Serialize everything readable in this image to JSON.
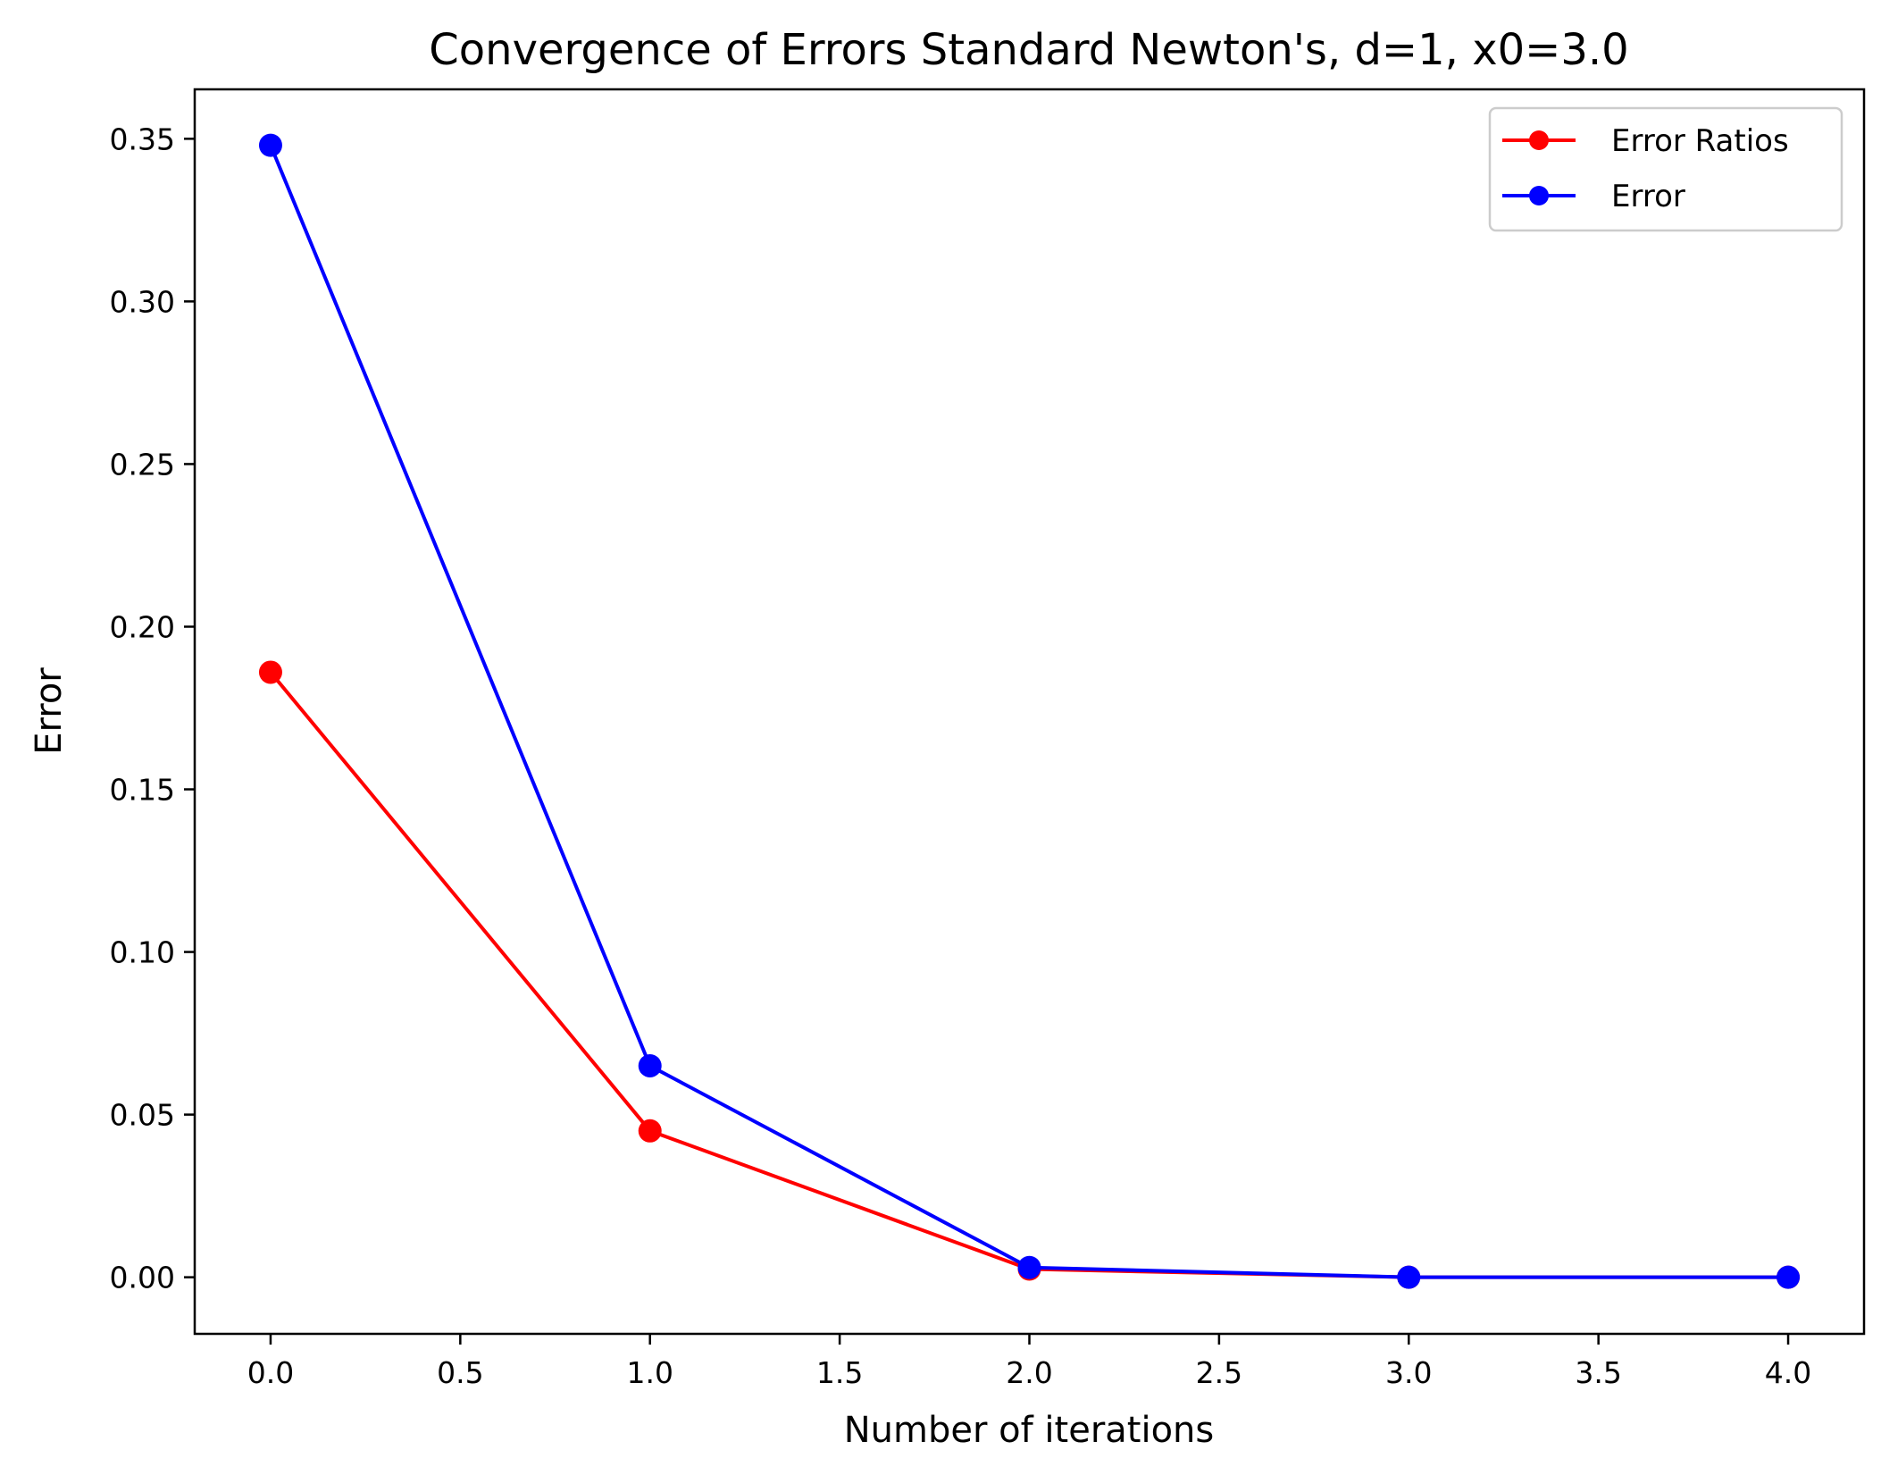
{
  "chart_data": {
    "type": "line",
    "title": "Convergence of Errors Standard Newton's, d=1, x0=3.0",
    "xlabel": "Number of iterations",
    "ylabel": "Error",
    "x": [
      0,
      1,
      2,
      3,
      4
    ],
    "xlim": [
      -0.2,
      4.2
    ],
    "ylim": [
      -0.0174,
      0.3652
    ],
    "xticks": [
      0.0,
      0.5,
      1.0,
      1.5,
      2.0,
      2.5,
      3.0,
      3.5,
      4.0
    ],
    "xtick_labels": [
      "0.0",
      "0.5",
      "1.0",
      "1.5",
      "2.0",
      "2.5",
      "3.0",
      "3.5",
      "4.0"
    ],
    "yticks": [
      0.0,
      0.05,
      0.1,
      0.15,
      0.2,
      0.25,
      0.3,
      0.35
    ],
    "ytick_labels": [
      "0.00",
      "0.05",
      "0.10",
      "0.15",
      "0.20",
      "0.25",
      "0.30",
      "0.35"
    ],
    "grid": false,
    "legend_position": "top-right",
    "series": [
      {
        "name": "Error Ratios",
        "color": "#ff0000",
        "marker": "circle",
        "values": [
          0.186,
          0.045,
          0.0025,
          0.0,
          0.0
        ]
      },
      {
        "name": "Error",
        "color": "#0000ff",
        "marker": "circle",
        "values": [
          0.348,
          0.065,
          0.003,
          0.0,
          0.0
        ]
      }
    ]
  }
}
